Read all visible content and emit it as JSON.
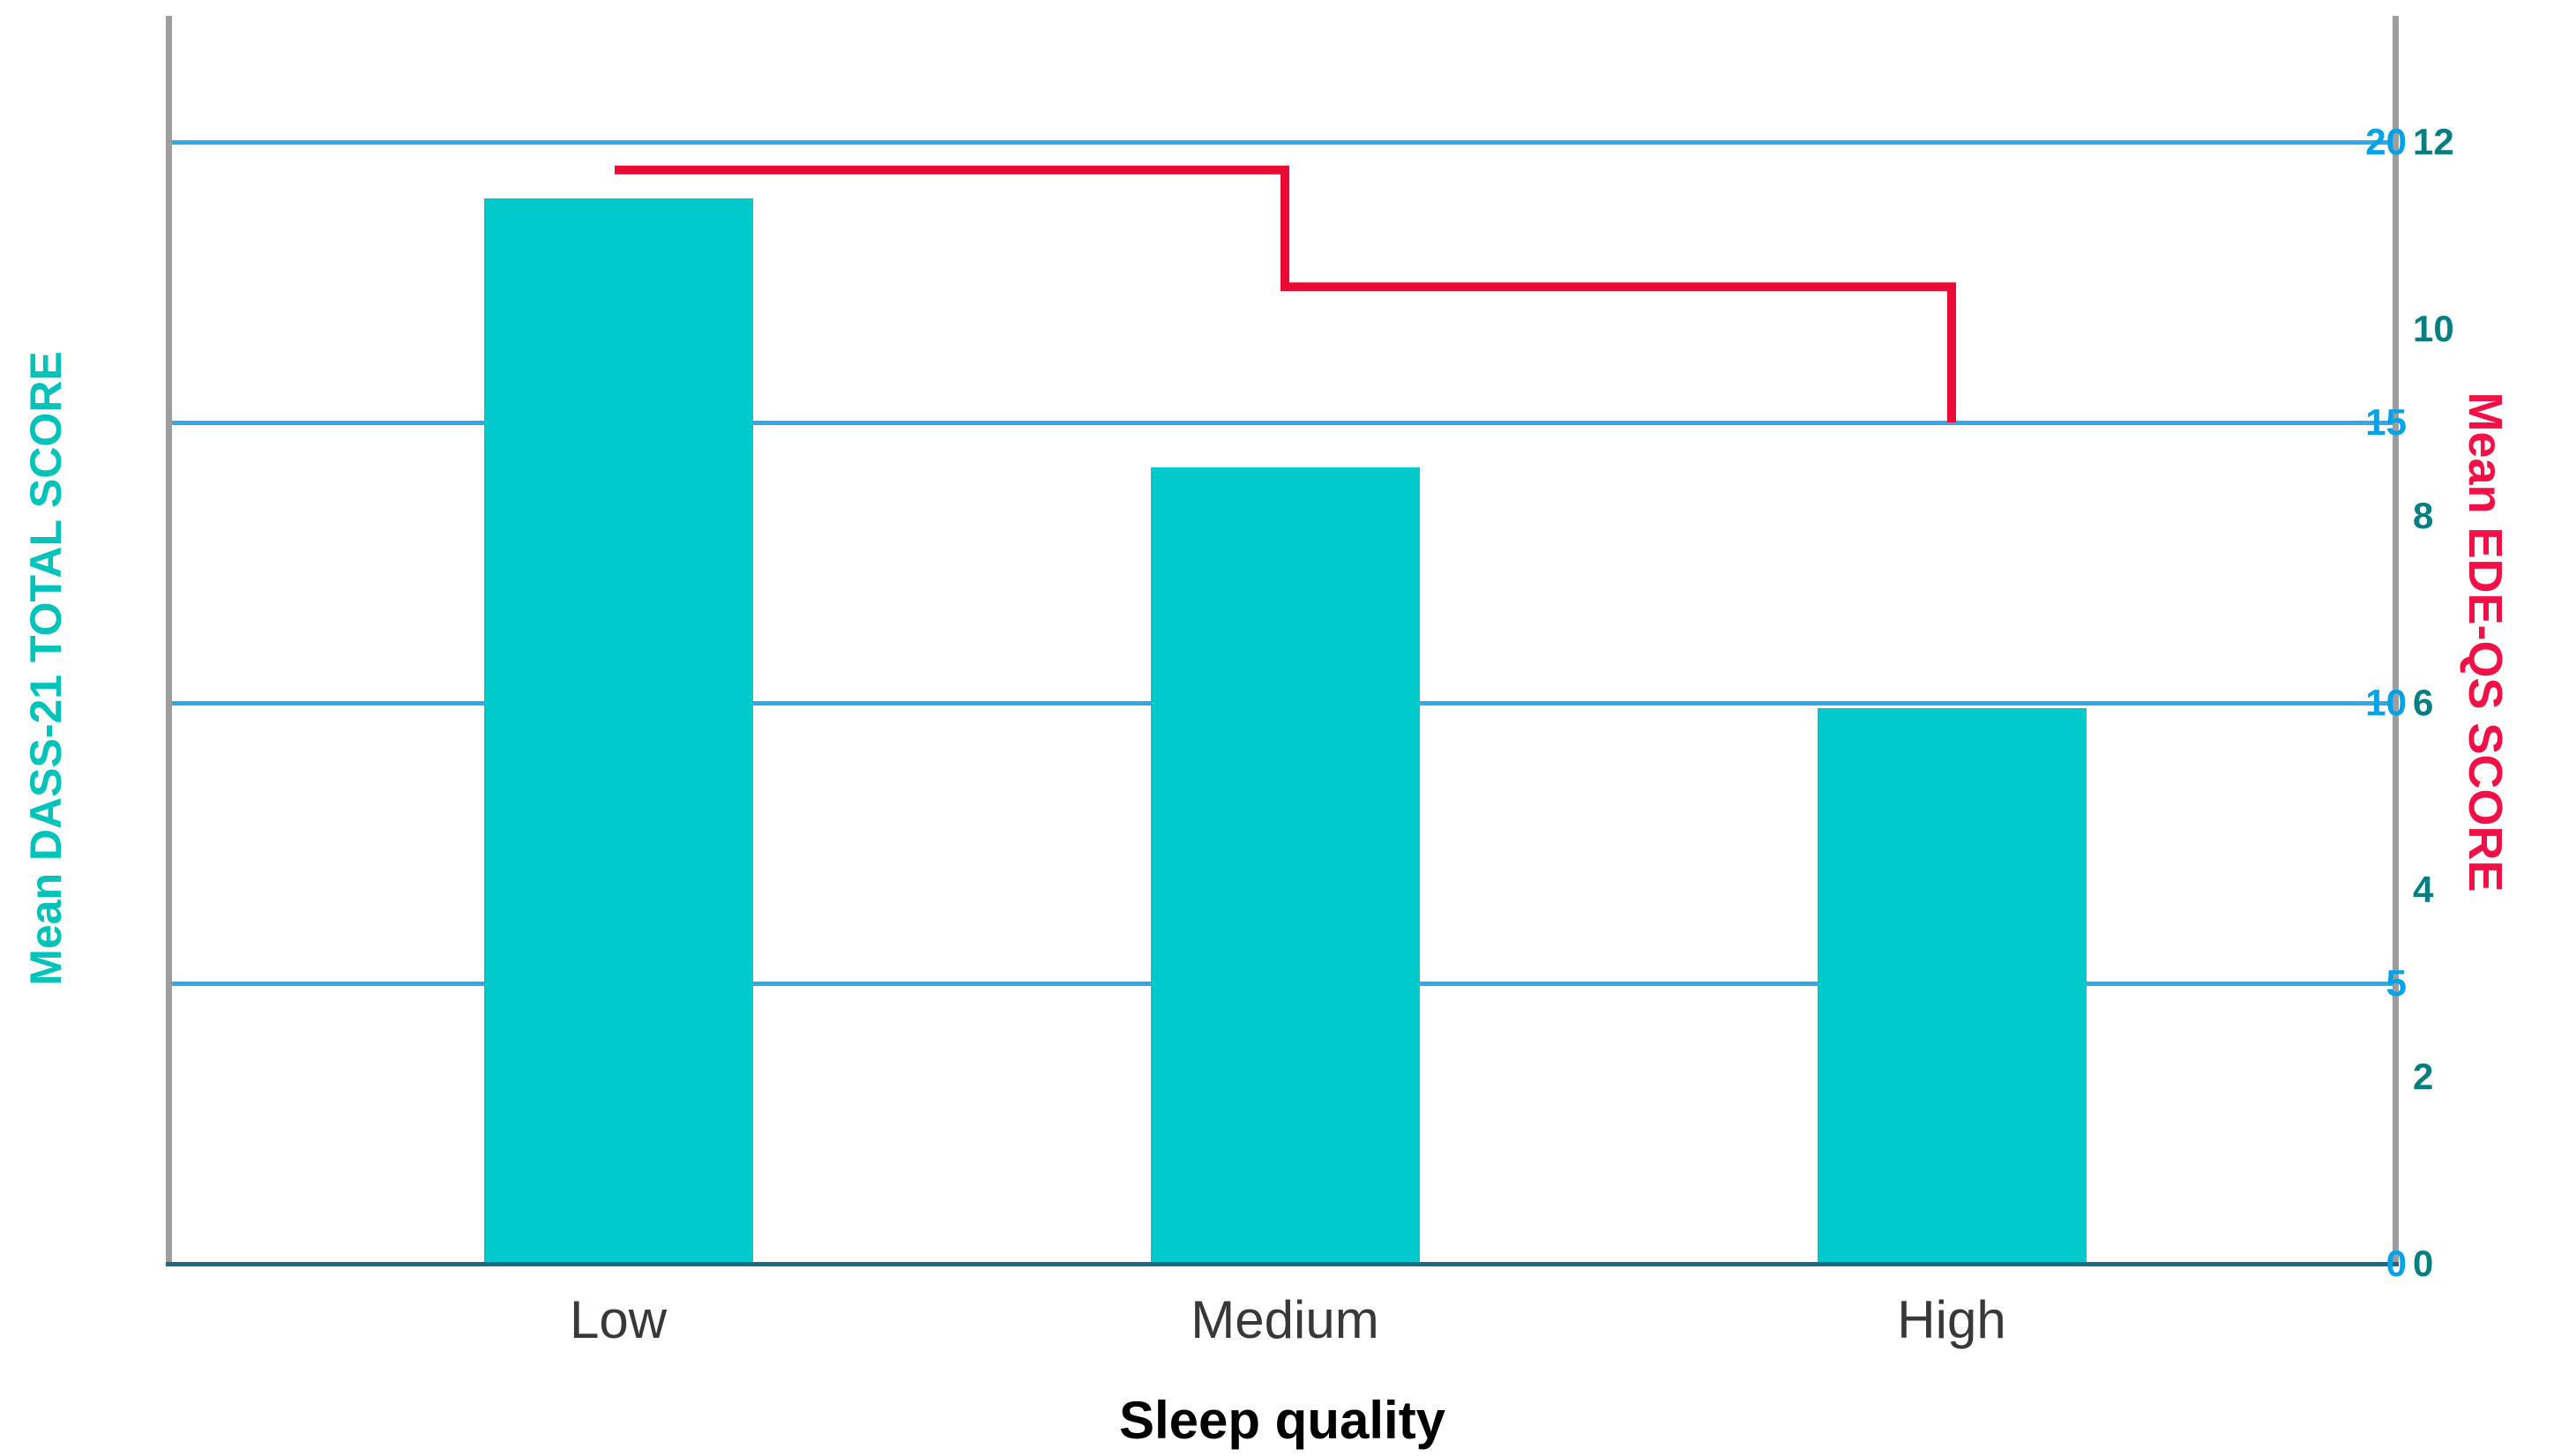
{
  "chart_data": {
    "type": "combo",
    "title": "",
    "categories": [
      "Low",
      "Medium",
      "High"
    ],
    "series": [
      {
        "name": "Mean DASS-21 TOTAL SCORE",
        "type": "bar",
        "axis": "left",
        "values": [
          19.0,
          14.2,
          9.9
        ],
        "color": "#00C9CC"
      },
      {
        "name": "Mean EDE-QS SCORE",
        "type": "step-line",
        "axis": "right",
        "values": [
          11.7,
          10.45,
          9.0
        ],
        "color": "#EB0A33"
      }
    ],
    "x_axis": {
      "title": "Sleep quality",
      "title_color": "#000000",
      "label_color": "#383838"
    },
    "left_axis": {
      "title": "Mean DASS-21 TOTAL SCORE",
      "ticks": [
        0,
        5,
        10,
        15,
        20
      ],
      "range": [
        0,
        20
      ],
      "tick_color": "#00A2E8",
      "title_color": "#00C3B9"
    },
    "right_axis": {
      "title": "Mean EDE-QS SCORE",
      "ticks": [
        0,
        2,
        4,
        6,
        8,
        10,
        12
      ],
      "range": [
        0,
        12
      ],
      "tick_color": "#077E81",
      "title_color": "#F21146"
    },
    "grid": "horizontal",
    "gridline_color": "#2EA9E9",
    "baseline_color": "#196A86",
    "axis_line_color": "#9D9D9D",
    "legend": "none",
    "background": "#FFFFFF"
  }
}
